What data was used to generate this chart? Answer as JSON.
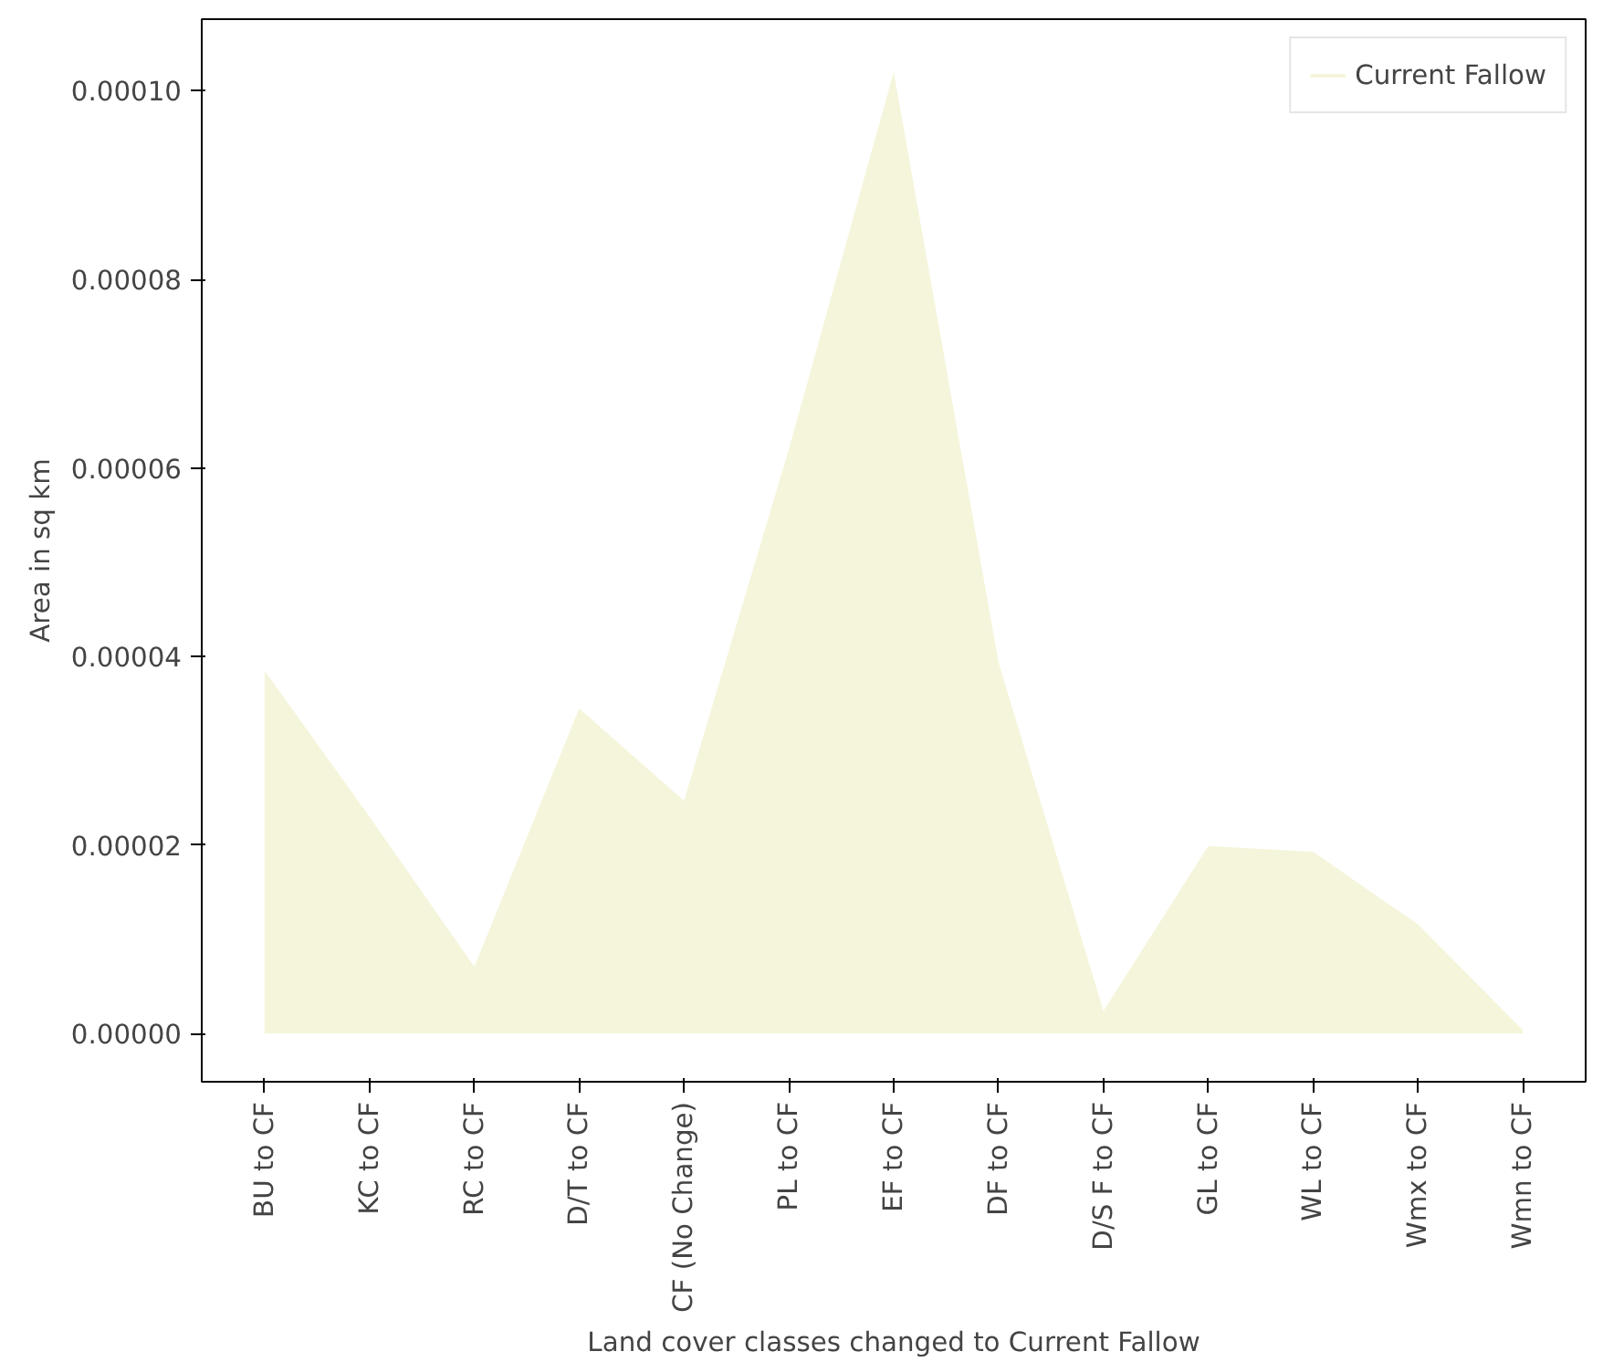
{
  "chart_data": {
    "type": "area",
    "xlabel": "Land cover classes changed to Current Fallow",
    "ylabel": "Area in sq km",
    "categories": [
      "BU to CF",
      "KC to CF",
      "RC to CF",
      "D/T to CF",
      "CF (No Change)",
      "PL to CF",
      "EF to CF",
      "DF to CF",
      "D/S F to CF",
      "GL to CF",
      "WL to CF",
      "Wmx to CF",
      "Wmn to CF"
    ],
    "series": [
      {
        "name": "Current Fallow",
        "color": "#f5f5dc",
        "values": [
          3.85e-05,
          2.3e-05,
          7.1e-06,
          3.45e-05,
          2.47e-05,
          6.2e-05,
          0.000102,
          3.94e-05,
          2.4e-06,
          1.99e-05,
          1.93e-05,
          1.16e-05,
          4e-07
        ]
      }
    ],
    "ylim": [
      -5.1e-06,
      0.0001076
    ],
    "yticks": [
      {
        "value": 0,
        "label": "0.00000"
      },
      {
        "value": 2e-05,
        "label": "0.00002"
      },
      {
        "value": 4e-05,
        "label": "0.00004"
      },
      {
        "value": 6e-05,
        "label": "0.00006"
      },
      {
        "value": 8e-05,
        "label": "0.00008"
      },
      {
        "value": 0.0001,
        "label": "0.00010"
      }
    ],
    "grid": false,
    "legend": "top right"
  }
}
